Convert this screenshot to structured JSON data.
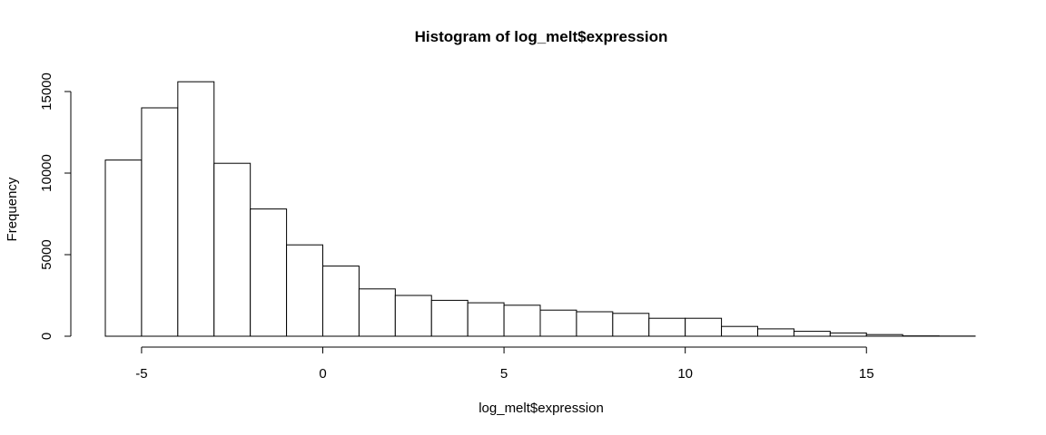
{
  "chart_data": {
    "type": "bar",
    "title": "Histogram of log_melt$expression",
    "xlabel": "log_melt$expression",
    "ylabel": "Frequency",
    "xlim": [
      -6,
      18
    ],
    "ylim": [
      0,
      15500
    ],
    "x_ticks": [
      -5,
      0,
      5,
      10,
      15
    ],
    "y_ticks": [
      0,
      5000,
      10000,
      15000
    ],
    "grid": false,
    "bins": [
      {
        "start": -6,
        "end": -5,
        "count": 10800
      },
      {
        "start": -5,
        "end": -4,
        "count": 14000
      },
      {
        "start": -4,
        "end": -3,
        "count": 15600
      },
      {
        "start": -3,
        "end": -2,
        "count": 10600
      },
      {
        "start": -2,
        "end": -1,
        "count": 7800
      },
      {
        "start": -1,
        "end": 0,
        "count": 5600
      },
      {
        "start": 0,
        "end": 1,
        "count": 4300
      },
      {
        "start": 1,
        "end": 2,
        "count": 2900
      },
      {
        "start": 2,
        "end": 3,
        "count": 2500
      },
      {
        "start": 3,
        "end": 4,
        "count": 2200
      },
      {
        "start": 4,
        "end": 5,
        "count": 2050
      },
      {
        "start": 5,
        "end": 6,
        "count": 1900
      },
      {
        "start": 6,
        "end": 7,
        "count": 1600
      },
      {
        "start": 7,
        "end": 8,
        "count": 1500
      },
      {
        "start": 8,
        "end": 9,
        "count": 1400
      },
      {
        "start": 9,
        "end": 10,
        "count": 1100
      },
      {
        "start": 10,
        "end": 11,
        "count": 1100
      },
      {
        "start": 11,
        "end": 12,
        "count": 600
      },
      {
        "start": 12,
        "end": 13,
        "count": 450
      },
      {
        "start": 13,
        "end": 14,
        "count": 300
      },
      {
        "start": 14,
        "end": 15,
        "count": 200
      },
      {
        "start": 15,
        "end": 16,
        "count": 100
      },
      {
        "start": 16,
        "end": 17,
        "count": 20
      },
      {
        "start": 17,
        "end": 18,
        "count": 10
      }
    ],
    "colors": {
      "bar_fill": "#ffffff",
      "bar_stroke": "#000000",
      "axis": "#000000",
      "text": "#000000"
    }
  }
}
